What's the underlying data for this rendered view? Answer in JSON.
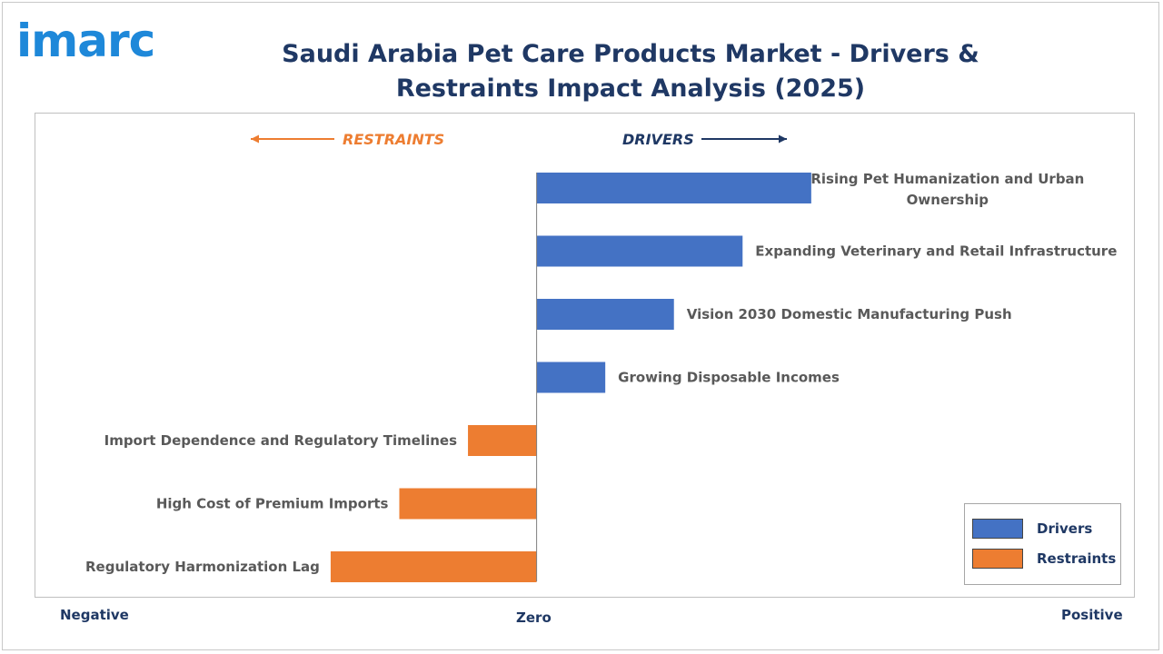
{
  "header": {
    "logo_text": "imarc",
    "title": "Saudi Arabia Pet Care Products Market - Drivers & Restraints Impact Analysis (2025)"
  },
  "directions": {
    "restraints_label": "RESTRAINTS",
    "drivers_label": "DRIVERS"
  },
  "axis": {
    "left_label": "Negative",
    "center_label": "Zero",
    "right_label": "Positive"
  },
  "legend": {
    "items": [
      {
        "label": "Drivers",
        "color": "#4472c4"
      },
      {
        "label": "Restraints",
        "color": "#ed7d31"
      }
    ]
  },
  "chart_data": {
    "type": "bar",
    "orientation": "horizontal",
    "categories": [
      "Rising Pet Humanization and Urban Ownership",
      "Expanding Veterinary and Retail Infrastructure",
      "Vision 2030 Domestic Manufacturing Push",
      "Growing Disposable Incomes",
      "Import Dependence and Regulatory Timelines",
      "High Cost of Premium Imports",
      "Regulatory Harmonization Lag"
    ],
    "series": [
      {
        "name": "Drivers",
        "color": "#4472c4",
        "values": [
          4,
          3,
          2,
          1,
          null,
          null,
          null
        ]
      },
      {
        "name": "Restraints",
        "color": "#ed7d31",
        "values": [
          null,
          null,
          null,
          null,
          -1,
          -2,
          -3
        ]
      }
    ],
    "xlim": [
      -7.3,
      8.7
    ],
    "grid": false,
    "legend_position": "bottom-right"
  }
}
